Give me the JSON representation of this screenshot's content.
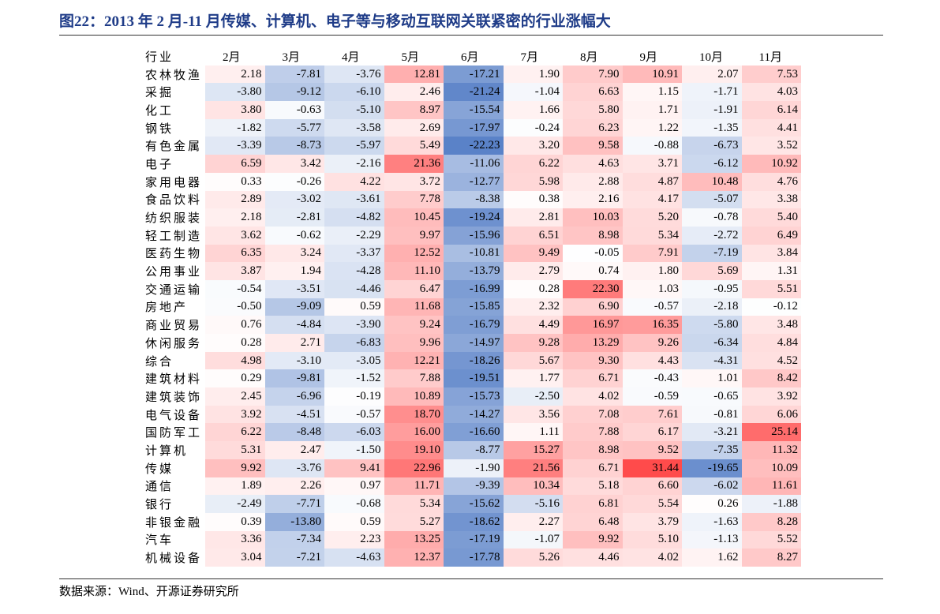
{
  "header": {
    "title": "图22：2013 年 2 月-11 月传媒、计算机、电子等与移动互联网关联紧密的行业涨幅大"
  },
  "table": {
    "header": [
      "行业",
      "2月",
      "3月",
      "4月",
      "5月",
      "6月",
      "7月",
      "8月",
      "9月",
      "10月",
      "11月"
    ],
    "rows": [
      [
        "农林牧渔",
        "2.18",
        "-7.81",
        "-3.76",
        "12.81",
        "-17.21",
        "1.90",
        "7.90",
        "10.91",
        "2.07",
        "7.53"
      ],
      [
        "采掘",
        "-3.80",
        "-9.12",
        "-6.10",
        "2.46",
        "-21.24",
        "-1.04",
        "6.63",
        "1.15",
        "-1.71",
        "4.03"
      ],
      [
        "化工",
        "3.80",
        "-0.63",
        "-5.10",
        "8.97",
        "-15.54",
        "1.66",
        "5.80",
        "1.71",
        "-1.91",
        "6.14"
      ],
      [
        "钢铁",
        "-1.82",
        "-5.77",
        "-3.58",
        "2.69",
        "-17.97",
        "-0.24",
        "6.23",
        "1.22",
        "-1.35",
        "4.41"
      ],
      [
        "有色金属",
        "-3.39",
        "-8.73",
        "-5.97",
        "5.49",
        "-22.23",
        "3.20",
        "9.58",
        "-0.88",
        "-6.73",
        "3.52"
      ],
      [
        "电子",
        "6.59",
        "3.42",
        "-2.16",
        "21.36",
        "-11.06",
        "6.22",
        "4.63",
        "3.71",
        "-6.12",
        "10.92"
      ],
      [
        "家用电器",
        "0.33",
        "-0.26",
        "4.22",
        "3.72",
        "-12.77",
        "5.98",
        "2.88",
        "4.87",
        "10.48",
        "4.76"
      ],
      [
        "食品饮料",
        "2.89",
        "-3.02",
        "-3.61",
        "7.78",
        "-8.38",
        "0.38",
        "2.16",
        "4.17",
        "-5.07",
        "3.38"
      ],
      [
        "纺织服装",
        "2.18",
        "-2.81",
        "-4.82",
        "10.45",
        "-19.24",
        "2.81",
        "10.03",
        "5.20",
        "-0.78",
        "5.40"
      ],
      [
        "轻工制造",
        "3.62",
        "-0.62",
        "-2.29",
        "9.97",
        "-15.96",
        "6.51",
        "8.98",
        "5.34",
        "-2.72",
        "6.49"
      ],
      [
        "医药生物",
        "6.35",
        "3.24",
        "-3.37",
        "12.52",
        "-10.81",
        "9.49",
        "-0.05",
        "7.91",
        "-7.19",
        "3.84"
      ],
      [
        "公用事业",
        "3.87",
        "1.94",
        "-4.28",
        "11.10",
        "-13.79",
        "2.79",
        "0.74",
        "1.80",
        "5.69",
        "1.31"
      ],
      [
        "交通运输",
        "-0.54",
        "-3.51",
        "-4.46",
        "6.47",
        "-16.99",
        "0.28",
        "22.30",
        "1.03",
        "-0.95",
        "5.51"
      ],
      [
        "房地产",
        "-0.50",
        "-9.09",
        "0.59",
        "11.68",
        "-15.85",
        "2.32",
        "6.90",
        "-0.57",
        "-2.18",
        "-0.12"
      ],
      [
        "商业贸易",
        "0.76",
        "-4.84",
        "-3.90",
        "9.24",
        "-16.79",
        "4.49",
        "16.97",
        "16.35",
        "-5.80",
        "3.48"
      ],
      [
        "休闲服务",
        "0.28",
        "2.71",
        "-6.83",
        "9.96",
        "-14.97",
        "9.28",
        "13.29",
        "9.26",
        "-6.34",
        "4.84"
      ],
      [
        "综合",
        "4.98",
        "-3.10",
        "-3.05",
        "12.21",
        "-18.26",
        "5.67",
        "9.30",
        "4.43",
        "-4.31",
        "4.52"
      ],
      [
        "建筑材料",
        "0.29",
        "-9.81",
        "-1.52",
        "7.88",
        "-19.51",
        "1.77",
        "6.71",
        "-0.43",
        "1.01",
        "8.42"
      ],
      [
        "建筑装饰",
        "2.45",
        "-6.96",
        "-0.19",
        "10.89",
        "-15.73",
        "-2.50",
        "4.02",
        "-0.59",
        "-0.65",
        "3.92"
      ],
      [
        "电气设备",
        "3.92",
        "-4.51",
        "-0.57",
        "18.70",
        "-14.27",
        "3.56",
        "7.08",
        "7.61",
        "-0.81",
        "6.06"
      ],
      [
        "国防军工",
        "6.22",
        "-8.48",
        "-6.03",
        "16.00",
        "-16.60",
        "1.11",
        "7.88",
        "6.17",
        "-3.21",
        "25.14"
      ],
      [
        "计算机",
        "5.31",
        "2.47",
        "-1.50",
        "19.10",
        "-8.77",
        "15.27",
        "8.98",
        "9.52",
        "-7.35",
        "11.32"
      ],
      [
        "传媒",
        "9.92",
        "-3.76",
        "9.41",
        "22.96",
        "-1.90",
        "21.56",
        "6.71",
        "31.44",
        "-19.65",
        "10.09"
      ],
      [
        "通信",
        "1.89",
        "2.26",
        "0.97",
        "11.71",
        "-9.39",
        "10.34",
        "5.18",
        "6.60",
        "-6.02",
        "11.61"
      ],
      [
        "银行",
        "-2.49",
        "-7.71",
        "-0.68",
        "5.34",
        "-15.62",
        "-5.16",
        "6.81",
        "5.54",
        "0.26",
        "-1.88"
      ],
      [
        "非银金融",
        "0.39",
        "-13.80",
        "0.59",
        "5.27",
        "-18.62",
        "2.27",
        "6.48",
        "3.79",
        "-1.63",
        "8.28"
      ],
      [
        "汽车",
        "3.36",
        "-7.34",
        "2.23",
        "13.25",
        "-17.19",
        "-1.07",
        "9.92",
        "5.10",
        "-1.13",
        "5.52"
      ],
      [
        "机械设备",
        "3.04",
        "-7.21",
        "-4.63",
        "12.37",
        "-17.78",
        "5.26",
        "4.46",
        "4.02",
        "1.62",
        "8.27"
      ]
    ]
  },
  "footer": {
    "source": "数据来源：Wind、开源证券研究所"
  }
}
